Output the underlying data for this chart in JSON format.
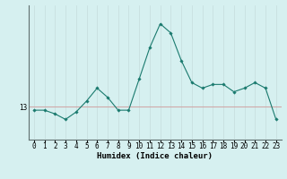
{
  "x": [
    0,
    1,
    2,
    3,
    4,
    5,
    6,
    7,
    8,
    9,
    10,
    11,
    12,
    13,
    14,
    15,
    16,
    17,
    18,
    19,
    20,
    21,
    22,
    23
  ],
  "y": [
    12.8,
    12.8,
    12.6,
    12.3,
    12.7,
    13.3,
    14.0,
    13.5,
    12.8,
    12.8,
    14.5,
    16.2,
    17.5,
    17.0,
    15.5,
    14.3,
    14.0,
    14.2,
    14.2,
    13.8,
    14.0,
    14.3,
    14.0,
    12.3
  ],
  "line_color": "#1a7a6e",
  "marker": "D",
  "marker_size": 1.8,
  "bg_color": "#d6f0f0",
  "grid_color_v": "#c8e0e0",
  "grid_color_h": "#c8d8d8",
  "ref_line_y": 13,
  "ref_line_color": "#d0a8a8",
  "xlabel": "Humidex (Indice chaleur)",
  "ylabel_labels": [
    "13"
  ],
  "ylabel_values": [
    13
  ],
  "xlim": [
    -0.5,
    23.5
  ],
  "ylim": [
    11.2,
    18.5
  ],
  "xlabel_fontsize": 6.5,
  "tick_fontsize": 5.5
}
